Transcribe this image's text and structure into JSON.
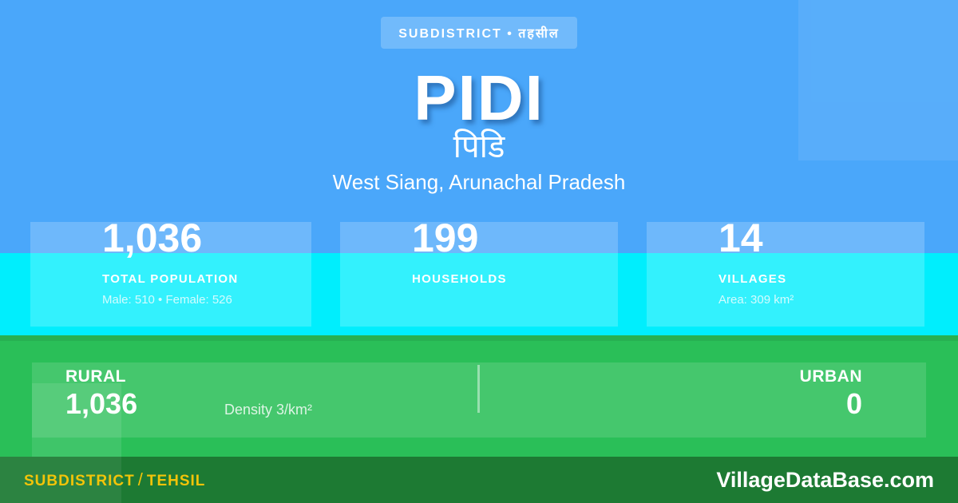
{
  "badge": {
    "label": "SUBDISTRICT • तहसील"
  },
  "header": {
    "title": "PIDI",
    "title_hindi": "पिडि",
    "location": "West Siang, Arunachal Pradesh"
  },
  "stats": [
    {
      "value": "1,036",
      "label": "TOTAL POPULATION",
      "detail": "Male: 510 • Female: 526"
    },
    {
      "value": "199",
      "label": "HOUSEHOLDS",
      "detail": ""
    },
    {
      "value": "14",
      "label": "VILLAGES",
      "detail": "Area: 309 km²"
    }
  ],
  "rural_urban": {
    "rural_label": "RURAL",
    "rural_value": "1,036",
    "density": "Density 3/km²",
    "urban_label": "URBAN",
    "urban_value": "0"
  },
  "footer": {
    "left_primary": "SUBDISTRICT",
    "left_separator": "/",
    "left_secondary": "TEHSIL",
    "site": "VillageDataBase.com"
  },
  "colors": {
    "background_blue": "#4aa7fa",
    "cyan_band": "#00eefd",
    "green_band": "#2abf58",
    "footer_bar": "#1d7a33",
    "accent_yellow": "#f2c409",
    "text_white": "#ffffff"
  }
}
